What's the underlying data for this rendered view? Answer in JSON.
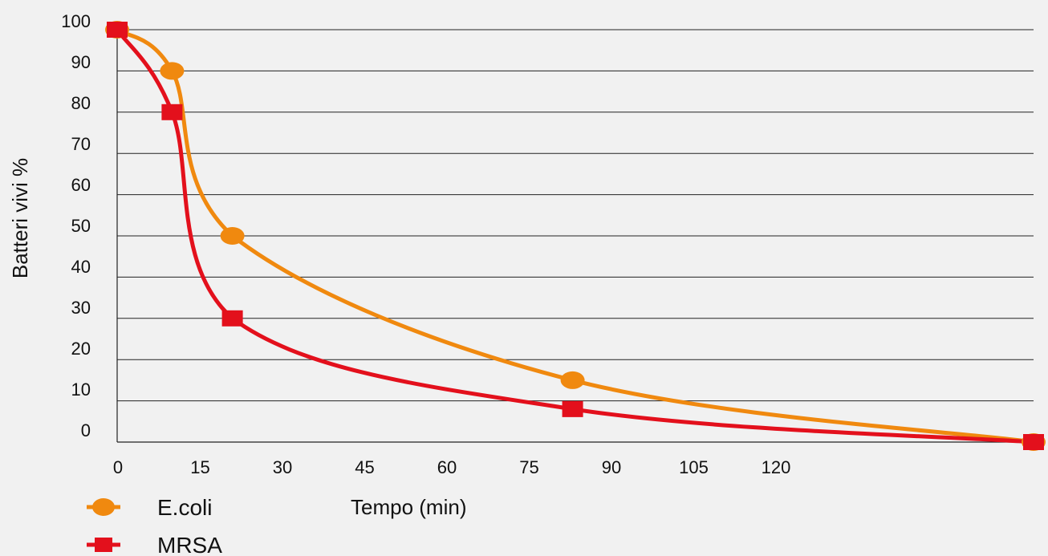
{
  "chart_data": {
    "type": "line",
    "xlabel": "Tempo (min)",
    "ylabel": "Batteri vivi %",
    "x_ticks": [
      "0",
      "15",
      "30",
      "45",
      "60",
      "75",
      "90",
      "105",
      "120"
    ],
    "y_ticks": [
      "0",
      "10",
      "20",
      "30",
      "40",
      "50",
      "60",
      "70",
      "80",
      "90",
      "100"
    ],
    "xlim": [
      0,
      167
    ],
    "ylim": [
      0,
      100
    ],
    "grid": "horizontal",
    "legend_position": "bottom-left",
    "series": [
      {
        "name": "E.coli",
        "color": "#F0890F",
        "marker": "circle",
        "points": [
          [
            0,
            100
          ],
          [
            10,
            90
          ],
          [
            21,
            50
          ],
          [
            83,
            15
          ],
          [
            167,
            0
          ]
        ]
      },
      {
        "name": "MRSA",
        "color": "#E3101C",
        "marker": "square",
        "points": [
          [
            0,
            100
          ],
          [
            10,
            80
          ],
          [
            21,
            30
          ],
          [
            83,
            8
          ],
          [
            167,
            0
          ]
        ]
      }
    ]
  }
}
